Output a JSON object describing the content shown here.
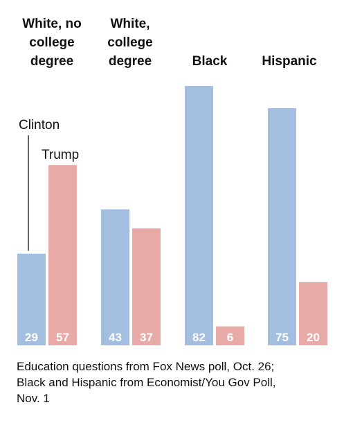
{
  "chart_data": {
    "type": "bar",
    "categories": [
      "White, no college degree",
      "White, college degree",
      "Black",
      "Hispanic"
    ],
    "category_label_lines": [
      [
        "White, no",
        "college",
        "degree"
      ],
      [
        "White,",
        "college",
        "degree"
      ],
      [
        "Black"
      ],
      [
        "Hispanic"
      ]
    ],
    "series": [
      {
        "name": "Clinton",
        "values": [
          29,
          43,
          82,
          75
        ]
      },
      {
        "name": "Trump",
        "values": [
          57,
          37,
          6,
          20
        ]
      }
    ],
    "ylim": [
      0,
      100
    ],
    "grid": false,
    "colors": {
      "Clinton": "#a3bedf",
      "Trump": "#e8aaa6"
    },
    "annotations": {
      "clinton_label": "Clinton",
      "trump_label": "Trump"
    }
  },
  "caption": {
    "line1": "Education questions from Fox News poll, Oct. 26;",
    "line2": "Black and Hispanic from Economist/You Gov Poll,",
    "line3": "Nov. 1"
  }
}
